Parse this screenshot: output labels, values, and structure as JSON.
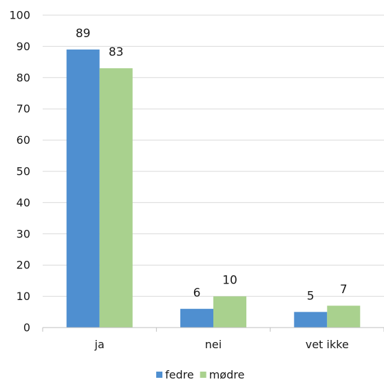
{
  "chart_data": {
    "type": "bar",
    "categories": [
      "ja",
      "nei",
      "vet ikke"
    ],
    "series": [
      {
        "name": "fedre",
        "values": [
          89,
          6,
          5
        ],
        "color": "#4f8fd0"
      },
      {
        "name": "mødre",
        "values": [
          83,
          10,
          7
        ],
        "color": "#a9d18e"
      }
    ],
    "ylim": [
      0,
      100
    ],
    "yticks": [
      0,
      10,
      20,
      30,
      40,
      50,
      60,
      70,
      80,
      90,
      100
    ],
    "grid": true,
    "legend_position": "bottom"
  }
}
